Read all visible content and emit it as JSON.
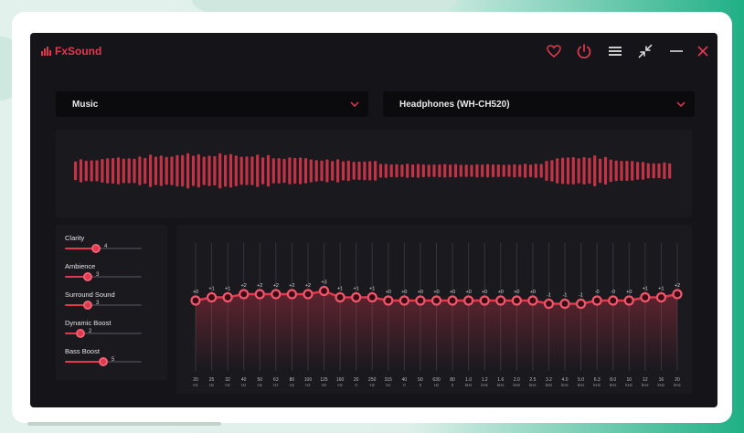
{
  "app": {
    "name": "FxSound",
    "accent_color": "#e1384e",
    "titlebar_icons": [
      "heart-icon",
      "power-icon",
      "menu-icon",
      "collapse-icon",
      "minimize-icon",
      "close-icon"
    ]
  },
  "preset": {
    "selected": "Music"
  },
  "output_device": {
    "selected": "Headphones (WH-CH520)"
  },
  "effects": [
    {
      "label": "Clarity",
      "value": "4",
      "level": 0.4
    },
    {
      "label": "Ambience",
      "value": "3",
      "level": 0.3
    },
    {
      "label": "Surround Sound",
      "value": "3",
      "level": 0.3
    },
    {
      "label": "Dynamic Boost",
      "value": "2",
      "level": 0.2
    },
    {
      "label": "Bass Boost",
      "value": "5",
      "level": 0.5
    }
  ],
  "equalizer": {
    "bands": [
      {
        "freq": "20",
        "unit": "Hz",
        "gain": "+0",
        "gain_value": 0
      },
      {
        "freq": "25",
        "unit": "Hz",
        "gain": "+1",
        "gain_value": 1
      },
      {
        "freq": "32",
        "unit": "Hz",
        "gain": "+1",
        "gain_value": 1
      },
      {
        "freq": "40",
        "unit": "Hz",
        "gain": "+2",
        "gain_value": 2
      },
      {
        "freq": "50",
        "unit": "Hz",
        "gain": "+2",
        "gain_value": 2
      },
      {
        "freq": "63",
        "unit": "Hz",
        "gain": "+2",
        "gain_value": 2
      },
      {
        "freq": "80",
        "unit": "Hz",
        "gain": "+2",
        "gain_value": 2
      },
      {
        "freq": "100",
        "unit": "Hz",
        "gain": "+2",
        "gain_value": 2
      },
      {
        "freq": "125",
        "unit": "Hz",
        "gain": "+3",
        "gain_value": 3
      },
      {
        "freq": "160",
        "unit": "Hz",
        "gain": "+1",
        "gain_value": 1
      },
      {
        "freq": "20",
        "unit": "0",
        "gain": "+1",
        "gain_value": 1
      },
      {
        "freq": "250",
        "unit": "Hz",
        "gain": "+1",
        "gain_value": 1
      },
      {
        "freq": "315",
        "unit": "Hz",
        "gain": "+0",
        "gain_value": 0
      },
      {
        "freq": "40",
        "unit": "0",
        "gain": "+0",
        "gain_value": 0
      },
      {
        "freq": "50",
        "unit": "0",
        "gain": "+0",
        "gain_value": 0
      },
      {
        "freq": "630",
        "unit": "Hz",
        "gain": "+0",
        "gain_value": 0
      },
      {
        "freq": "80",
        "unit": "0",
        "gain": "+0",
        "gain_value": 0
      },
      {
        "freq": "1.0",
        "unit": "kHz",
        "gain": "+0",
        "gain_value": 0
      },
      {
        "freq": "1.2",
        "unit": "kHz",
        "gain": "+0",
        "gain_value": 0
      },
      {
        "freq": "1.6",
        "unit": "kHz",
        "gain": "+0",
        "gain_value": 0
      },
      {
        "freq": "2.0",
        "unit": "kHz",
        "gain": "+0",
        "gain_value": 0
      },
      {
        "freq": "2.5",
        "unit": "kHz",
        "gain": "+0",
        "gain_value": 0
      },
      {
        "freq": "3.2",
        "unit": "kHz",
        "gain": "-1",
        "gain_value": -1
      },
      {
        "freq": "4.0",
        "unit": "kHz",
        "gain": "-1",
        "gain_value": -1
      },
      {
        "freq": "5.0",
        "unit": "kHz",
        "gain": "-1",
        "gain_value": -1
      },
      {
        "freq": "6.3",
        "unit": "kHz",
        "gain": "-0",
        "gain_value": 0
      },
      {
        "freq": "8.0",
        "unit": "kHz",
        "gain": "-0",
        "gain_value": 0
      },
      {
        "freq": "10",
        "unit": "kHz",
        "gain": "+0",
        "gain_value": 0
      },
      {
        "freq": "12",
        "unit": "kHz",
        "gain": "+1",
        "gain_value": 1
      },
      {
        "freq": "16",
        "unit": "kHz",
        "gain": "+1",
        "gain_value": 1
      },
      {
        "freq": "20",
        "unit": "kHz",
        "gain": "+2",
        "gain_value": 2
      }
    ]
  }
}
